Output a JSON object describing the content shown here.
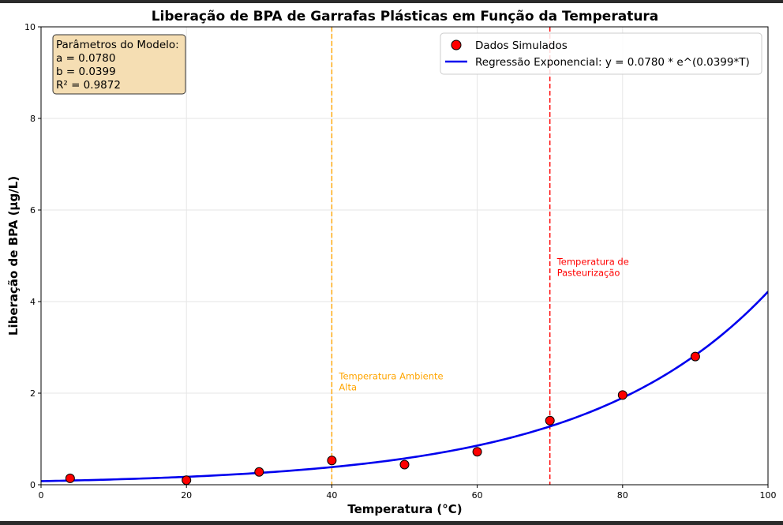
{
  "chart_data": {
    "type": "scatter",
    "title": "Liberação de BPA de Garrafas Plásticas em Função da Temperatura",
    "xlabel": "Temperatura (°C)",
    "ylabel": "Liberação de BPA (µg/L)",
    "xlim": [
      0,
      100
    ],
    "ylim": [
      0,
      10
    ],
    "x_ticks": [
      0,
      20,
      40,
      60,
      80,
      100
    ],
    "y_ticks": [
      0,
      2,
      4,
      6,
      8,
      10
    ],
    "grid": true,
    "legend_position": "top-right",
    "series": [
      {
        "name": "Dados Simulados",
        "kind": "scatter",
        "color": "#ff0000",
        "points": [
          {
            "x": 4,
            "y": 0.14
          },
          {
            "x": 20,
            "y": 0.1
          },
          {
            "x": 30,
            "y": 0.28
          },
          {
            "x": 40,
            "y": 0.53
          },
          {
            "x": 50,
            "y": 0.44
          },
          {
            "x": 60,
            "y": 0.72
          },
          {
            "x": 70,
            "y": 1.4
          },
          {
            "x": 80,
            "y": 1.96
          },
          {
            "x": 90,
            "y": 2.8
          }
        ]
      },
      {
        "name": "Regressão Exponencial: y = 0.0780 * e^(0.0399*T)",
        "kind": "line",
        "color": "#0000ee",
        "model": {
          "a": 0.078,
          "b": 0.0399
        }
      }
    ],
    "vlines": [
      {
        "x": 40,
        "color": "#ffa500",
        "label": [
          "Temperatura Ambiente",
          "Alta"
        ],
        "label_y": 2.3
      },
      {
        "x": 70,
        "color": "#ff0000",
        "label": [
          "Temperatura de",
          "Pasteurização"
        ],
        "label_y": 4.8
      }
    ],
    "params_box": {
      "lines": [
        "Parâmetros do Modelo:",
        "a = 0.0780",
        "b = 0.0399",
        "R² = 0.9872"
      ],
      "background": "#f5deb3"
    }
  }
}
